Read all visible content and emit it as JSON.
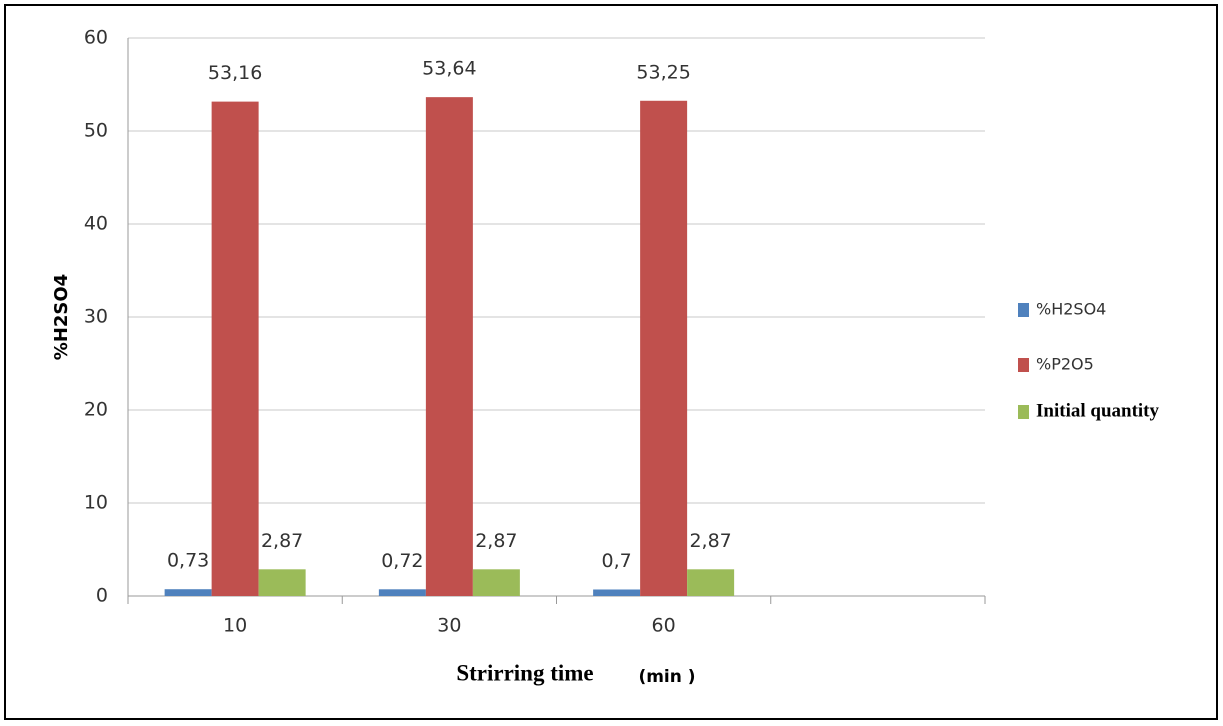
{
  "chart_data": {
    "type": "bar",
    "ylabel": "%H2SO4",
    "xlabel": "Strirring time",
    "xlabel_unit": "(min )",
    "categories": [
      "10",
      "30",
      "60",
      null
    ],
    "series": [
      {
        "name": "%H2SO4",
        "color": "#4f81bd",
        "values": [
          0.73,
          0.72,
          0.7,
          null
        ],
        "value_labels": [
          "0,73",
          "0,72",
          "0,7",
          null
        ]
      },
      {
        "name": "%P2O5",
        "color": "#c0504d",
        "values": [
          53.16,
          53.64,
          53.25,
          null
        ],
        "value_labels": [
          "53,16",
          "53,64",
          "53,25",
          null
        ]
      },
      {
        "name": "Initial quantity",
        "color": "#9bbb59",
        "values": [
          2.87,
          2.87,
          2.87,
          null
        ],
        "value_labels": [
          "2,87",
          "2,87",
          "2,87",
          null
        ]
      }
    ],
    "ylim": [
      0,
      60
    ],
    "yticks": [
      0,
      10,
      20,
      30,
      40,
      50,
      60
    ],
    "grid": true,
    "legend": "right"
  }
}
